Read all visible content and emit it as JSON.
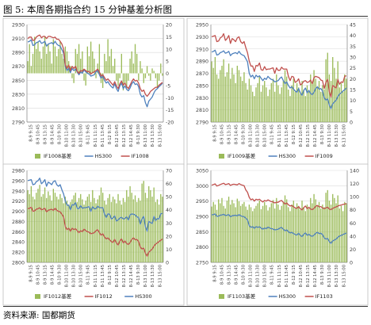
{
  "figure": {
    "title": "图 5:  本周各期指合约 15 分钟基差分析图",
    "source": "资料来源:  国都期货"
  },
  "colors": {
    "basis": "#9bbb59",
    "basis_stroke": "#7f9c40",
    "hs300": "#4f81bd",
    "future": "#c0504d",
    "grid": "#d9d9d9",
    "axis": "#808080"
  },
  "chart_data": [
    {
      "type": "bar",
      "panel": "top-left",
      "legend": [
        "IF1008基差",
        "HS300",
        "IF1008"
      ],
      "legend_position": "bottom",
      "x_tick_labels": [
        "8-9 9:15",
        "8-9 10:45",
        "8-9 13:15",
        "8-9 14:45",
        "8-10 9:30",
        "8-10 11:00",
        "8-10 13:30",
        "8-10 15:00",
        "8-11 9:45",
        "8-11 11:15",
        "8-11 13:45",
        "8-12 9:15",
        "8-12 10:45",
        "8-12 13:15",
        "8-12 14:45",
        "8-13 9:30",
        "8-13 11:00",
        "8-13 13:30",
        "8-13 15:00"
      ],
      "y_left": {
        "lim": [
          2790,
          2930
        ],
        "ticks": [
          2790,
          2810,
          2830,
          2850,
          2870,
          2890,
          2910,
          2930
        ]
      },
      "y_right": {
        "lim": [
          -20,
          20
        ],
        "ticks": [
          -20,
          -15,
          -10,
          -5,
          0,
          5,
          10,
          15,
          20
        ]
      },
      "basis": [
        5,
        12,
        3,
        8,
        15,
        10,
        13,
        9,
        6,
        11,
        15,
        8,
        12,
        9,
        4,
        14,
        11,
        7,
        10,
        13,
        8,
        6,
        11,
        9,
        5,
        3,
        -2,
        -4,
        10,
        8,
        12,
        6,
        9,
        -3,
        -5,
        11,
        7,
        13,
        9,
        6,
        -2,
        4,
        12,
        -4,
        -6,
        8,
        5,
        14,
        7,
        10,
        3,
        6,
        -3,
        -5,
        -2,
        8,
        -7,
        -4,
        -6,
        -3,
        6,
        9,
        4,
        12,
        8,
        -3,
        5,
        2,
        -4,
        -2,
        3,
        -1,
        -3,
        2,
        1,
        -2,
        -6,
        -3,
        4,
        -1
      ],
      "hs300": [
        2905,
        2906,
        2908,
        2900,
        2901,
        2904,
        2905,
        2907,
        2903,
        2904,
        2906,
        2899,
        2902,
        2903,
        2904,
        2902,
        2906,
        2902,
        2900,
        2899,
        2894,
        2889,
        2870,
        2864,
        2867,
        2861,
        2867,
        2864,
        2866,
        2862,
        2858,
        2862,
        2860,
        2865,
        2862,
        2860,
        2859,
        2856,
        2857,
        2858,
        2862,
        2864,
        2858,
        2853,
        2856,
        2850,
        2846,
        2848,
        2844,
        2841,
        2839,
        2845,
        2838,
        2834,
        2842,
        2846,
        2838,
        2842,
        2837,
        2835,
        2839,
        2845,
        2848,
        2844,
        2845,
        2841,
        2830,
        2826,
        2828,
        2818,
        2812,
        2820,
        2823,
        2826,
        2832,
        2836,
        2838,
        2841,
        2843,
        2846
      ],
      "future": [
        2910,
        2912,
        2912,
        2907,
        2908,
        2912,
        2914,
        2915,
        2911,
        2913,
        2913,
        2910,
        2913,
        2913,
        2912,
        2911,
        2912,
        2909,
        2909,
        2906,
        2902,
        2895,
        2872,
        2867,
        2872,
        2864,
        2870,
        2867,
        2870,
        2863,
        2860,
        2864,
        2863,
        2866,
        2864,
        2862,
        2863,
        2859,
        2861,
        2862,
        2864,
        2866,
        2862,
        2856,
        2858,
        2854,
        2850,
        2852,
        2849,
        2846,
        2843,
        2848,
        2842,
        2838,
        2845,
        2849,
        2843,
        2846,
        2841,
        2838,
        2843,
        2848,
        2852,
        2849,
        2850,
        2846,
        2838,
        2834,
        2836,
        2830,
        2827,
        2830,
        2834,
        2836,
        2838,
        2840,
        2840,
        2843,
        2845,
        2847
      ]
    },
    {
      "type": "bar",
      "panel": "top-right",
      "legend": [
        "IF1009基差",
        "HS300",
        "IF1009"
      ],
      "legend_position": "bottom",
      "x_tick_labels": [
        "8-9 9:15",
        "8-9 10:45",
        "8-9 13:15",
        "8-9 14:45",
        "8-10 9:30",
        "8-10 11:00",
        "8-10 13:30",
        "8-10 15:00",
        "8-11 9:45",
        "8-11 11:15",
        "8-11 13:45",
        "8-12 9:15",
        "8-12 10:45",
        "8-12 13:15",
        "8-12 14:45",
        "8-13 9:30",
        "8-13 11:00",
        "8-13 13:30",
        "8-13 15:00"
      ],
      "y_left": {
        "lim": [
          2790,
          2950
        ],
        "ticks": [
          2790,
          2810,
          2830,
          2850,
          2870,
          2890,
          2910,
          2930,
          2950
        ]
      },
      "y_right": {
        "lim": [
          0,
          45
        ],
        "ticks": [
          0,
          5,
          10,
          15,
          20,
          25,
          30,
          35,
          40,
          45
        ]
      },
      "basis": [
        28,
        25,
        30,
        22,
        20,
        24,
        26,
        29,
        21,
        23,
        27,
        20,
        25,
        22,
        18,
        26,
        24,
        21,
        19,
        23,
        18,
        15,
        20,
        17,
        14,
        12,
        16,
        18,
        21,
        14,
        17,
        19,
        16,
        12,
        15,
        18,
        20,
        14,
        22,
        17,
        13,
        16,
        19,
        24,
        21,
        15,
        12,
        17,
        20,
        14,
        18,
        16,
        13,
        19,
        15,
        12,
        17,
        14,
        22,
        18,
        24,
        20,
        16,
        19,
        14,
        17,
        15,
        29,
        32,
        22,
        19,
        30,
        25,
        20,
        28,
        16,
        18,
        14,
        22,
        20
      ],
      "hs300": [
        2905,
        2906,
        2908,
        2900,
        2901,
        2904,
        2905,
        2907,
        2903,
        2904,
        2906,
        2899,
        2902,
        2903,
        2904,
        2902,
        2906,
        2902,
        2900,
        2899,
        2894,
        2889,
        2870,
        2864,
        2867,
        2861,
        2867,
        2864,
        2866,
        2862,
        2858,
        2862,
        2860,
        2865,
        2862,
        2860,
        2859,
        2856,
        2857,
        2858,
        2862,
        2864,
        2858,
        2853,
        2856,
        2850,
        2846,
        2848,
        2844,
        2841,
        2839,
        2845,
        2838,
        2834,
        2842,
        2846,
        2838,
        2842,
        2837,
        2835,
        2839,
        2845,
        2848,
        2844,
        2845,
        2841,
        2830,
        2826,
        2828,
        2818,
        2812,
        2820,
        2823,
        2826,
        2832,
        2836,
        2838,
        2841,
        2843,
        2846
      ],
      "future": [
        2930,
        2931,
        2932,
        2922,
        2923,
        2928,
        2930,
        2935,
        2924,
        2927,
        2932,
        2919,
        2927,
        2925,
        2922,
        2928,
        2930,
        2922,
        2919,
        2922,
        2912,
        2904,
        2890,
        2882,
        2882,
        2873,
        2883,
        2882,
        2887,
        2876,
        2875,
        2881,
        2876,
        2877,
        2877,
        2878,
        2879,
        2870,
        2879,
        2875,
        2875,
        2880,
        2877,
        2877,
        2877,
        2865,
        2858,
        2865,
        2864,
        2855,
        2857,
        2861,
        2851,
        2853,
        2857,
        2858,
        2855,
        2856,
        2859,
        2853,
        2863,
        2865,
        2864,
        2863,
        2859,
        2858,
        2845,
        2855,
        2860,
        2840,
        2831,
        2850,
        2848,
        2846,
        2860,
        2852,
        2856,
        2855,
        2865,
        2866
      ]
    },
    {
      "type": "bar",
      "panel": "bottom-left",
      "legend": [
        "IF1012基差",
        "IF1012",
        "HS300"
      ],
      "legend_position": "bottom",
      "x_tick_labels": [
        "8-9 9:15",
        "8-9 10:45",
        "8-9 13:15",
        "8-9 14:45",
        "8-10 9:30",
        "8-10 11:00",
        "8-10 13:30",
        "8-10 15:00",
        "8-11 9:45",
        "8-11 11:15",
        "8-11 13:45",
        "8-12 9:15",
        "8-12 10:45",
        "8-12 13:15",
        "8-12 14:45",
        "8-13 9:30",
        "8-13 11:00",
        "8-13 13:30",
        "8-13 15:00"
      ],
      "y_left": {
        "lim": [
          2800,
          2980
        ],
        "ticks": [
          2800,
          2820,
          2840,
          2860,
          2880,
          2900,
          2920,
          2940,
          2960,
          2980
        ]
      },
      "y_right": {
        "lim": [
          0,
          70
        ],
        "ticks": [
          0,
          10,
          20,
          30,
          40,
          50,
          60,
          70
        ]
      },
      "basis": [
        55,
        52,
        58,
        50,
        48,
        53,
        56,
        59,
        50,
        52,
        57,
        49,
        54,
        51,
        47,
        56,
        53,
        50,
        48,
        52,
        49,
        45,
        50,
        47,
        44,
        46,
        48,
        51,
        53,
        46,
        49,
        52,
        48,
        44,
        47,
        50,
        52,
        46,
        55,
        49,
        45,
        48,
        51,
        57,
        53,
        47,
        44,
        49,
        52,
        46,
        50,
        48,
        45,
        52,
        47,
        44,
        49,
        46,
        55,
        50,
        58,
        53,
        48,
        51,
        46,
        49,
        47,
        60,
        62,
        53,
        49,
        58,
        55,
        50,
        57,
        46,
        48,
        44,
        52,
        50
      ],
      "hs300": [
        2960,
        2961,
        2962,
        2952,
        2953,
        2958,
        2960,
        2965,
        2954,
        2957,
        2962,
        2949,
        2957,
        2955,
        2952,
        2958,
        2960,
        2952,
        2949,
        2952,
        2942,
        2934,
        2920,
        2912,
        2912,
        2903,
        2913,
        2912,
        2917,
        2906,
        2905,
        2911,
        2906,
        2907,
        2907,
        2908,
        2909,
        2900,
        2909,
        2905,
        2905,
        2910,
        2907,
        2907,
        2907,
        2895,
        2888,
        2895,
        2894,
        2885,
        2887,
        2891,
        2881,
        2883,
        2887,
        2888,
        2885,
        2886,
        2889,
        2883,
        2893,
        2895,
        2894,
        2893,
        2889,
        2888,
        2875,
        2885,
        2890,
        2870,
        2861,
        2880,
        2878,
        2876,
        2890,
        2882,
        2886,
        2885,
        2895,
        2896
      ],
      "future": [
        2905,
        2906,
        2908,
        2900,
        2901,
        2904,
        2905,
        2907,
        2903,
        2904,
        2906,
        2899,
        2902,
        2903,
        2904,
        2902,
        2906,
        2902,
        2900,
        2899,
        2894,
        2889,
        2870,
        2864,
        2867,
        2861,
        2867,
        2864,
        2866,
        2862,
        2858,
        2862,
        2860,
        2865,
        2862,
        2860,
        2859,
        2856,
        2857,
        2858,
        2862,
        2864,
        2858,
        2853,
        2856,
        2850,
        2846,
        2848,
        2844,
        2841,
        2839,
        2845,
        2838,
        2834,
        2842,
        2846,
        2838,
        2842,
        2837,
        2835,
        2839,
        2845,
        2848,
        2844,
        2845,
        2841,
        2830,
        2826,
        2828,
        2818,
        2812,
        2820,
        2823,
        2826,
        2832,
        2836,
        2838,
        2841,
        2843,
        2846
      ]
    },
    {
      "type": "bar",
      "panel": "bottom-right",
      "legend": [
        "IF1103基差",
        "HS300",
        "IF1103"
      ],
      "legend_position": "bottom",
      "x_tick_labels": [
        "8-9 9:15",
        "8-9 10:45",
        "8-9 13:15",
        "8-9 14:45",
        "8-10 9:30",
        "8-10 11:00",
        "8-10 13:30",
        "8-10 15:00",
        "8-11 9:45",
        "8-11 11:15",
        "8-11 13:45",
        "8-12 9:15",
        "8-12 10:45",
        "8-12 13:15",
        "8-12 14:45",
        "8-13 9:30",
        "8-13 11:00",
        "8-13 13:30",
        "8-13 15:00"
      ],
      "y_left": {
        "lim": [
          2750,
          3050
        ],
        "ticks": [
          2750,
          2800,
          2850,
          2900,
          2950,
          3000,
          3050
        ]
      },
      "y_right": {
        "lim": [
          0,
          140
        ],
        "ticks": [
          0,
          20,
          40,
          60,
          80,
          100,
          120,
          140
        ]
      },
      "basis": [
        85,
        92,
        88,
        80,
        96,
        90,
        98,
        86,
        82,
        94,
        100,
        88,
        95,
        90,
        84,
        97,
        93,
        86,
        89,
        92,
        85,
        80,
        88,
        84,
        78,
        82,
        86,
        90,
        94,
        81,
        86,
        92,
        87,
        79,
        84,
        90,
        95,
        82,
        98,
        88,
        80,
        86,
        92,
        102,
        96,
        84,
        78,
        88,
        94,
        82,
        90,
        86,
        80,
        94,
        84,
        78,
        88,
        82,
        98,
        90,
        104,
        96,
        86,
        92,
        82,
        88,
        84,
        106,
        110,
        94,
        88,
        104,
        98,
        90,
        102,
        82,
        86,
        78,
        92,
        90
      ],
      "hs300": [
        2905,
        2906,
        2908,
        2900,
        2901,
        2904,
        2905,
        2907,
        2903,
        2904,
        2906,
        2899,
        2902,
        2903,
        2904,
        2902,
        2906,
        2902,
        2900,
        2899,
        2894,
        2889,
        2870,
        2864,
        2867,
        2861,
        2867,
        2864,
        2866,
        2862,
        2858,
        2862,
        2860,
        2865,
        2862,
        2860,
        2859,
        2856,
        2857,
        2858,
        2862,
        2864,
        2858,
        2853,
        2856,
        2850,
        2846,
        2848,
        2844,
        2841,
        2839,
        2845,
        2838,
        2834,
        2842,
        2846,
        2838,
        2842,
        2837,
        2835,
        2839,
        2845,
        2848,
        2844,
        2845,
        2841,
        2830,
        2826,
        2828,
        2818,
        2812,
        2820,
        2823,
        2826,
        2832,
        2836,
        2838,
        2841,
        2843,
        2846
      ],
      "future": [
        3002,
        3004,
        3006,
        2999,
        3001,
        3004,
        3006,
        3008,
        3004,
        3005,
        3007,
        3001,
        3004,
        3005,
        3004,
        3003,
        3007,
        3004,
        3002,
        3000,
        2986,
        2979,
        2962,
        2954,
        2957,
        2950,
        2956,
        2954,
        2956,
        2951,
        2947,
        2952,
        2950,
        2954,
        2951,
        2948,
        2947,
        2944,
        2946,
        2946,
        2950,
        2952,
        2946,
        2940,
        2944,
        2938,
        2934,
        2936,
        2931,
        2928,
        2926,
        2932,
        2925,
        2921,
        2929,
        2934,
        2925,
        2930,
        2924,
        2922,
        2926,
        2933,
        2936,
        2931,
        2932,
        2928,
        2925,
        2928,
        2930,
        2924,
        2922,
        2926,
        2929,
        2931,
        2934,
        2936,
        2937,
        2939,
        2940,
        2942
      ]
    }
  ]
}
